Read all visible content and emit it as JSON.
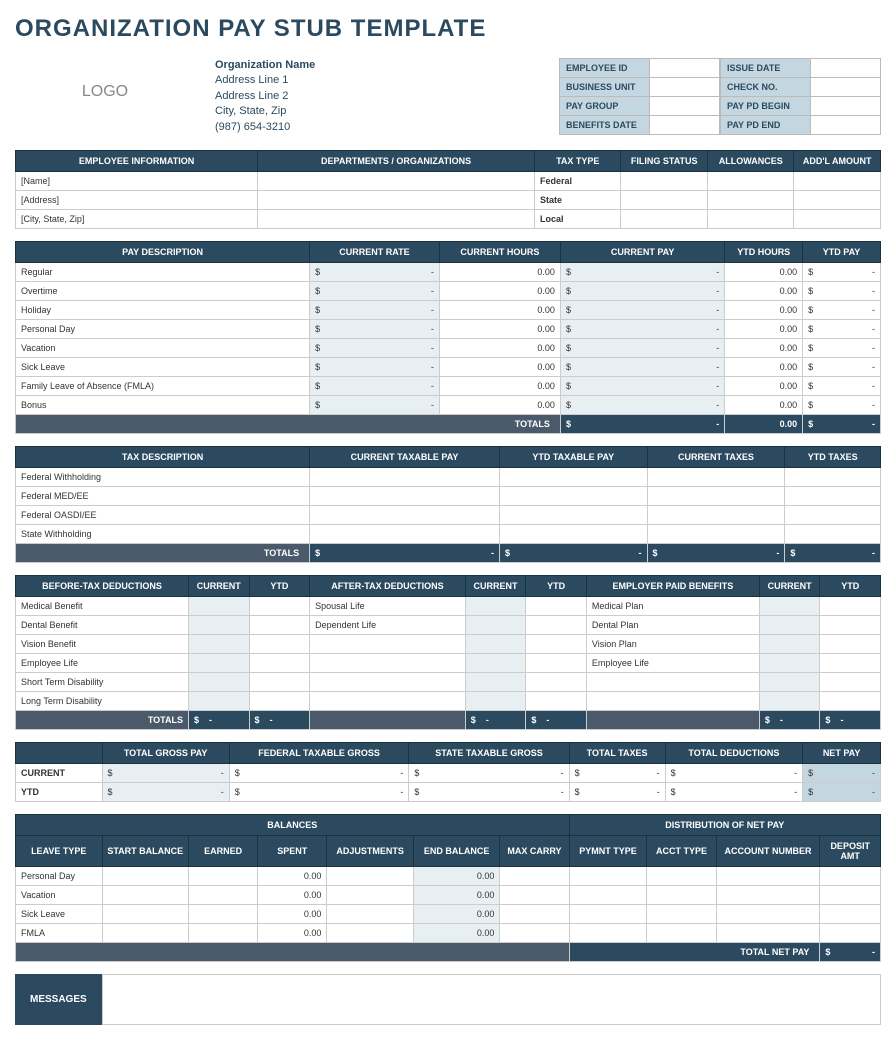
{
  "title": "ORGANIZATION PAY STUB TEMPLATE",
  "logo": "LOGO",
  "org": {
    "name": "Organization Name",
    "addr1": "Address Line 1",
    "addr2": "Address Line 2",
    "csz": "City, State, Zip",
    "phone": "(987) 654-3210"
  },
  "hdr": {
    "emp_id": "EMPLOYEE ID",
    "bus_unit": "BUSINESS UNIT",
    "pay_group": "PAY GROUP",
    "benefits_date": "BENEFITS DATE",
    "issue_date": "ISSUE DATE",
    "check_no": "CHECK NO.",
    "pay_begin": "PAY PD BEGIN",
    "pay_end": "PAY PD END"
  },
  "emp_info": {
    "headers": [
      "EMPLOYEE INFORMATION",
      "DEPARTMENTS / ORGANIZATIONS",
      "TAX TYPE",
      "FILING STATUS",
      "ALLOWANCES",
      "ADD'L AMOUNT"
    ],
    "name": "[Name]",
    "address": "[Address]",
    "csz": "[City, State, Zip]",
    "tax1": "Federal",
    "tax2": "State",
    "tax3": "Local"
  },
  "pay": {
    "headers": [
      "PAY DESCRIPTION",
      "CURRENT RATE",
      "CURRENT HOURS",
      "CURRENT PAY",
      "YTD HOURS",
      "YTD PAY"
    ],
    "rows": [
      "Regular",
      "Overtime",
      "Holiday",
      "Personal Day",
      "Vacation",
      "Sick Leave",
      "Family Leave of Absence (FMLA)",
      "Bonus"
    ],
    "rate": "-",
    "hours": "0.00",
    "pay": "-",
    "ytd_h": "0.00",
    "ytd_p": "-",
    "totals": "TOTALS"
  },
  "tax": {
    "headers": [
      "TAX DESCRIPTION",
      "CURRENT TAXABLE PAY",
      "YTD TAXABLE PAY",
      "CURRENT TAXES",
      "YTD TAXES"
    ],
    "rows": [
      "Federal Withholding",
      "Federal MED/EE",
      "Federal OASDI/EE",
      "State Withholding"
    ],
    "totals": "TOTALS"
  },
  "ded": {
    "h1": "BEFORE-TAX DEDUCTIONS",
    "h2": "CURRENT",
    "h3": "YTD",
    "h4": "AFTER-TAX DEDUCTIONS",
    "h5": "CURRENT",
    "h6": "YTD",
    "h7": "EMPLOYER PAID BENEFITS",
    "h8": "CURRENT",
    "h9": "YTD",
    "before": [
      "Medical Benefit",
      "Dental Benefit",
      "Vision Benefit",
      "Employee Life",
      "Short Term Disability",
      "Long Term Disability"
    ],
    "after": [
      "Spousal Life",
      "Dependent Life"
    ],
    "emp": [
      "Medical Plan",
      "Dental Plan",
      "Vision Plan",
      "Employee Life"
    ],
    "totals": "TOTALS"
  },
  "summary": {
    "headers": [
      "",
      "TOTAL GROSS PAY",
      "FEDERAL TAXABLE GROSS",
      "STATE TAXABLE GROSS",
      "TOTAL TAXES",
      "TOTAL DEDUCTIONS",
      "NET PAY"
    ],
    "current": "CURRENT",
    "ytd": "YTD"
  },
  "bal": {
    "sec1": "BALANCES",
    "sec2": "DISTRIBUTION OF NET PAY",
    "headers": [
      "LEAVE TYPE",
      "START BALANCE",
      "EARNED",
      "SPENT",
      "ADJUSTMENTS",
      "END BALANCE",
      "MAX CARRY",
      "PYMNT TYPE",
      "ACCT TYPE",
      "ACCOUNT NUMBER",
      "DEPOSIT AMT"
    ],
    "rows": [
      "Personal Day",
      "Vacation",
      "Sick Leave",
      "FMLA"
    ],
    "zero": "0.00",
    "total_net": "TOTAL NET PAY"
  },
  "messages": "MESSAGES",
  "colors": {
    "navy": "#2b4a5f",
    "light": "#c4d7e0",
    "pale": "#e8eff3",
    "gray": "#4a5a6a"
  }
}
